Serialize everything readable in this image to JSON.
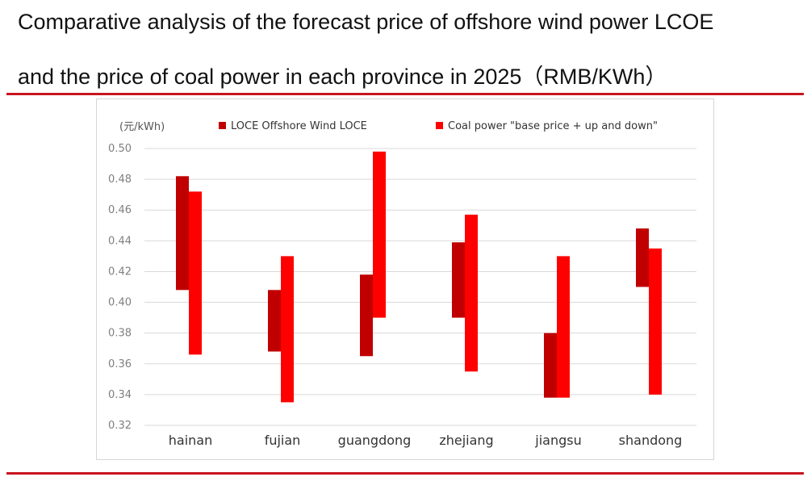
{
  "header": {
    "title_line1": "Comparative analysis of the forecast price of offshore wind power LCOE",
    "title_line2": "and the price of coal power in each province in 2025（RMB/KWh）"
  },
  "chart_data": {
    "type": "bar",
    "subtype": "floating-range",
    "unit_label": "(元/kWh)",
    "categories": [
      "hainan",
      "fujian",
      "guangdong",
      "zhejiang",
      "jiangsu",
      "shandong"
    ],
    "series": [
      {
        "name": "LOCE Offshore Wind LOCE",
        "color": "#c00000",
        "ranges": [
          [
            0.408,
            0.482
          ],
          [
            0.368,
            0.408
          ],
          [
            0.365,
            0.418
          ],
          [
            0.39,
            0.439
          ],
          [
            0.338,
            0.38
          ],
          [
            0.41,
            0.448
          ]
        ]
      },
      {
        "name": "Coal power \"base price + up and down\"",
        "color": "#ff0000",
        "ranges": [
          [
            0.366,
            0.472
          ],
          [
            0.335,
            0.43
          ],
          [
            0.39,
            0.498
          ],
          [
            0.355,
            0.457
          ],
          [
            0.338,
            0.43
          ],
          [
            0.34,
            0.435
          ]
        ]
      }
    ],
    "ylim": [
      0.32,
      0.5
    ],
    "yticks": [
      "0.32",
      "0.34",
      "0.36",
      "0.38",
      "0.40",
      "0.42",
      "0.44",
      "0.46",
      "0.48",
      "0.50"
    ],
    "grid": true,
    "legend_position": "top"
  }
}
